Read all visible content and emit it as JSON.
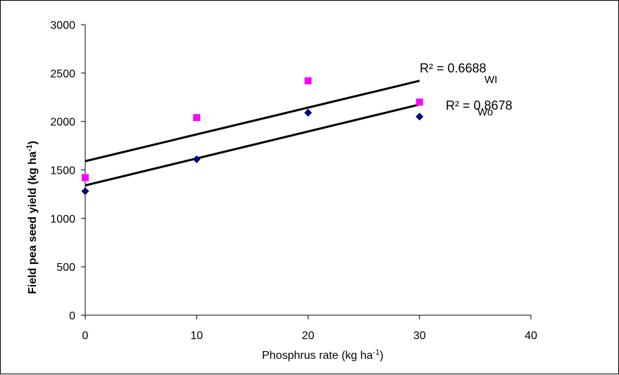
{
  "chart_data": {
    "type": "scatter",
    "xlabel_main": "Phosphrus rate (kg ha",
    "xlabel_sup": "-1",
    "xlabel_end": ")",
    "ylabel_main": "Field pea seed  yield (kg ha",
    "ylabel_sup": "-1",
    "ylabel_end": ")",
    "xlim": [
      0,
      40
    ],
    "ylim": [
      0,
      3000
    ],
    "xticks": [
      0,
      10,
      20,
      30,
      40
    ],
    "yticks": [
      0,
      500,
      1000,
      1500,
      2000,
      2500,
      3000
    ],
    "grid": false,
    "series": [
      {
        "name": "WI",
        "marker": "square",
        "color": "#ff00ff",
        "x": [
          0,
          10,
          20,
          30
        ],
        "y": [
          1420,
          2040,
          2420,
          2200
        ],
        "trendline": {
          "start": 1590,
          "end": 2420
        },
        "r2": "R² = 0.6688"
      },
      {
        "name": "Wo",
        "marker": "diamond",
        "color": "#000080",
        "x": [
          0,
          10,
          20,
          30
        ],
        "y": [
          1280,
          1610,
          2090,
          2050
        ],
        "trendline": {
          "start": 1340,
          "end": 2175
        },
        "r2": "R² = 0.8678"
      }
    ]
  }
}
